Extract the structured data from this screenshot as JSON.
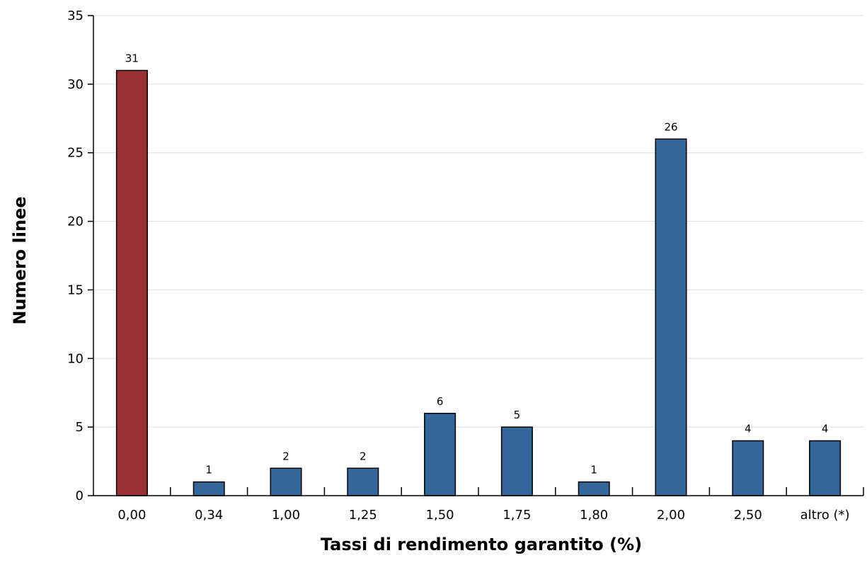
{
  "chart_data": {
    "type": "bar",
    "title": "",
    "xlabel": "Tassi di rendimento garantito (%)",
    "ylabel": "Numero linee",
    "categories": [
      "0,00",
      "0,34",
      "1,00",
      "1,25",
      "1,50",
      "1,75",
      "1,80",
      "2,00",
      "2,50",
      "altro (*)"
    ],
    "values": [
      31,
      1,
      2,
      2,
      6,
      5,
      1,
      26,
      4,
      4
    ],
    "data_labels": [
      "31",
      "1",
      "2",
      "2",
      "6",
      "5",
      "1",
      "26",
      "4",
      "4"
    ],
    "bar_colors": [
      "#9b3034",
      "#336699",
      "#336699",
      "#336699",
      "#336699",
      "#336699",
      "#336699",
      "#336699",
      "#336699",
      "#336699"
    ],
    "ylim": [
      0,
      35
    ],
    "yticks": [
      0,
      5,
      10,
      15,
      20,
      25,
      30,
      35
    ],
    "ytick_labels": [
      "0",
      "5",
      "10",
      "15",
      "20",
      "25",
      "30",
      "35"
    ],
    "grid": true,
    "grid_color": "#dddddd",
    "legend": false
  }
}
